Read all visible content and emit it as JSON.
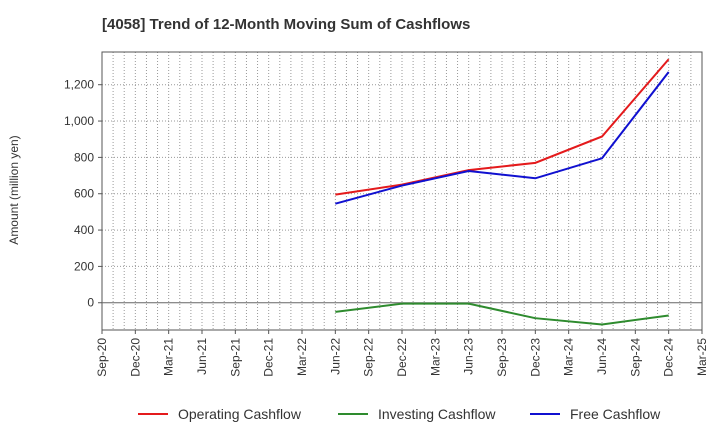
{
  "chart_data": {
    "type": "line",
    "title": "[4058]  Trend of 12-Month Moving Sum of Cashflows",
    "ylabel": "Amount (million yen)",
    "xlabel": "",
    "categories": [
      "Sep-20",
      "Dec-20",
      "Mar-21",
      "Jun-21",
      "Sep-21",
      "Dec-21",
      "Mar-22",
      "Jun-22",
      "Sep-22",
      "Dec-22",
      "Mar-23",
      "Jun-23",
      "Sep-23",
      "Dec-23",
      "Mar-24",
      "Jun-24",
      "Sep-24",
      "Dec-24",
      "Mar-25"
    ],
    "ylim": [
      -150,
      1380
    ],
    "yticks": [
      0,
      200,
      400,
      600,
      800,
      1000,
      1200
    ],
    "ytick_labels": [
      "0",
      "200",
      "400",
      "600",
      "800",
      "1,000",
      "1,200"
    ],
    "grid": true,
    "legend_position": "bottom",
    "series": [
      {
        "name": "Operating Cashflow",
        "color": "#e41a1c",
        "points": [
          [
            "Jun-22",
            595
          ],
          [
            "Dec-22",
            650
          ],
          [
            "Jun-23",
            730
          ],
          [
            "Dec-23",
            770
          ],
          [
            "Jun-24",
            915
          ],
          [
            "Dec-24",
            1340
          ]
        ]
      },
      {
        "name": "Investing Cashflow",
        "color": "#2e8b2e",
        "points": [
          [
            "Jun-22",
            -50
          ],
          [
            "Dec-22",
            -5
          ],
          [
            "Jun-23",
            -5
          ],
          [
            "Dec-23",
            -85
          ],
          [
            "Jun-24",
            -120
          ],
          [
            "Dec-24",
            -70
          ]
        ]
      },
      {
        "name": "Free Cashflow",
        "color": "#1010d0",
        "points": [
          [
            "Jun-22",
            545
          ],
          [
            "Dec-22",
            645
          ],
          [
            "Jun-23",
            725
          ],
          [
            "Dec-23",
            685
          ],
          [
            "Jun-24",
            795
          ],
          [
            "Dec-24",
            1270
          ]
        ]
      }
    ]
  }
}
